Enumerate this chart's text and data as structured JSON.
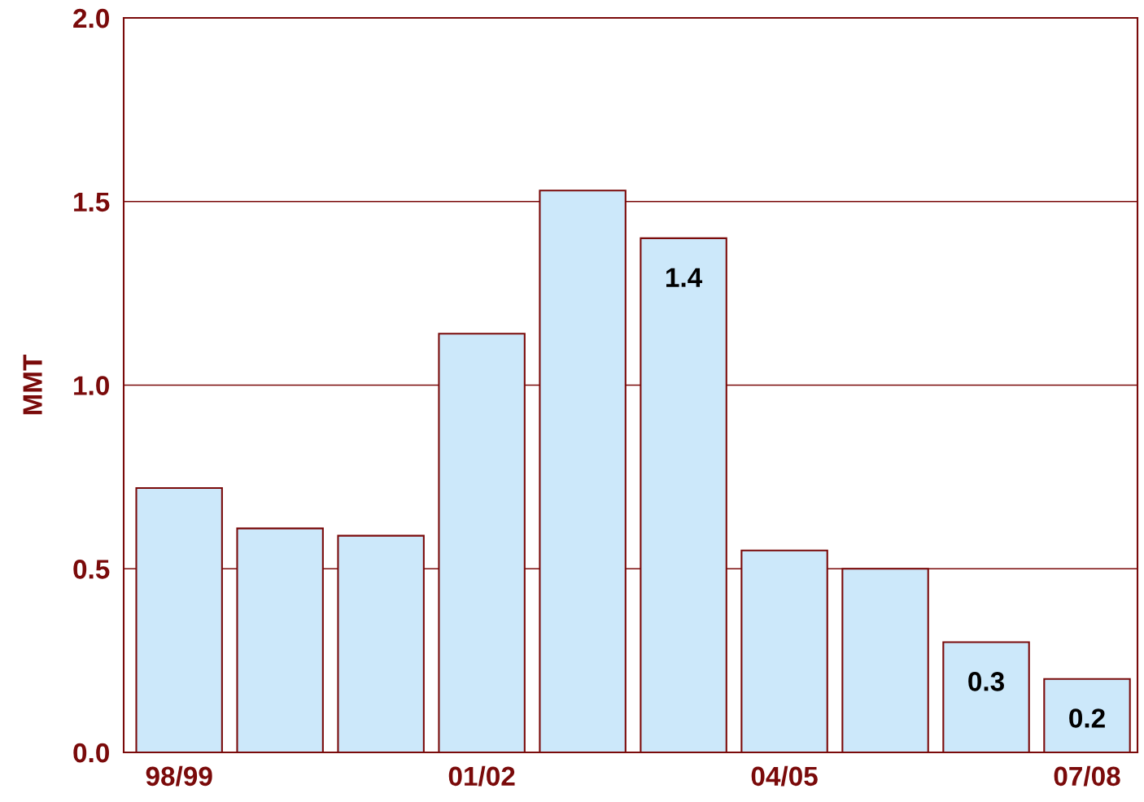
{
  "chart_data": {
    "type": "bar",
    "ylabel": "MMT",
    "categories": [
      "98/99",
      null,
      null,
      "01/02",
      null,
      null,
      "04/05",
      null,
      null,
      "07/08"
    ],
    "values": [
      0.72,
      0.61,
      0.59,
      1.14,
      1.53,
      1.4,
      0.55,
      0.5,
      0.3,
      0.2
    ],
    "value_labels": [
      null,
      null,
      null,
      null,
      null,
      "1.4",
      null,
      null,
      "0.3",
      "0.2"
    ],
    "color": "#cce8fa",
    "ylim": [
      0,
      2
    ],
    "yticks": [
      {
        "value": 0,
        "label": "0.0"
      },
      {
        "value": 0.5,
        "label": "0.5"
      },
      {
        "value": 1,
        "label": "1.0"
      },
      {
        "value": 1.5,
        "label": "1.5"
      },
      {
        "value": 2,
        "label": "2.0"
      }
    ],
    "grid": "y",
    "legend": false
  }
}
